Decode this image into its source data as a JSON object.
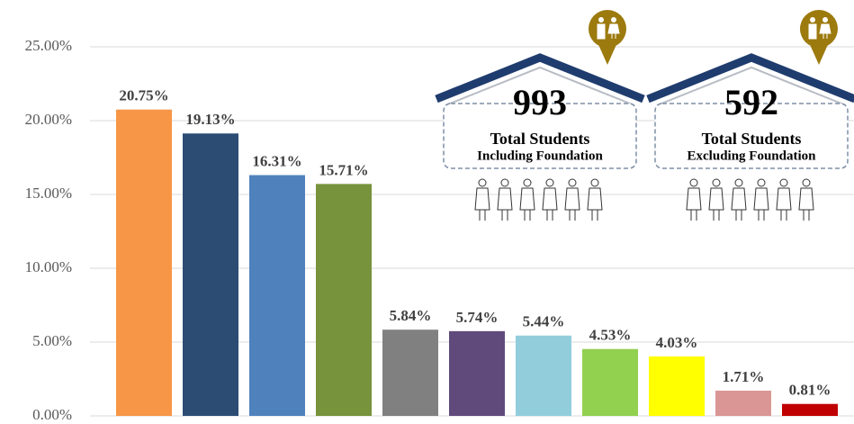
{
  "chart_data": {
    "type": "bar",
    "categories": [
      null,
      null,
      null,
      null,
      null,
      null,
      null,
      null,
      null,
      null,
      null
    ],
    "values": [
      20.75,
      19.13,
      16.31,
      15.71,
      5.84,
      5.74,
      5.44,
      4.53,
      4.03,
      1.71,
      0.81
    ],
    "value_labels": [
      "20.75%",
      "19.13%",
      "16.31%",
      "15.71%",
      "5.84%",
      "5.74%",
      "5.44%",
      "4.53%",
      "4.03%",
      "1.71%",
      "0.81%"
    ],
    "colors": [
      "#f79646",
      "#2c4c74",
      "#4f81bd",
      "#77933c",
      "#808080",
      "#604a7b",
      "#92cddc",
      "#92d050",
      "#ffff00",
      "#d99694",
      "#c00000"
    ],
    "ylim": [
      0,
      25
    ],
    "yticks": [
      {
        "value": 0,
        "label": "0.00%"
      },
      {
        "value": 5,
        "label": "5.00%"
      },
      {
        "value": 10,
        "label": "10.00%"
      },
      {
        "value": 15,
        "label": "15.00%"
      },
      {
        "value": 20,
        "label": "20.00%"
      },
      {
        "value": 25,
        "label": "25.00%"
      }
    ],
    "grid": true,
    "annotations": [
      {
        "number": 993,
        "title": "Total Students",
        "subtitle": "Including Foundation"
      },
      {
        "number": 592,
        "title": "Total Students",
        "subtitle": "Excluding Foundation"
      }
    ]
  }
}
